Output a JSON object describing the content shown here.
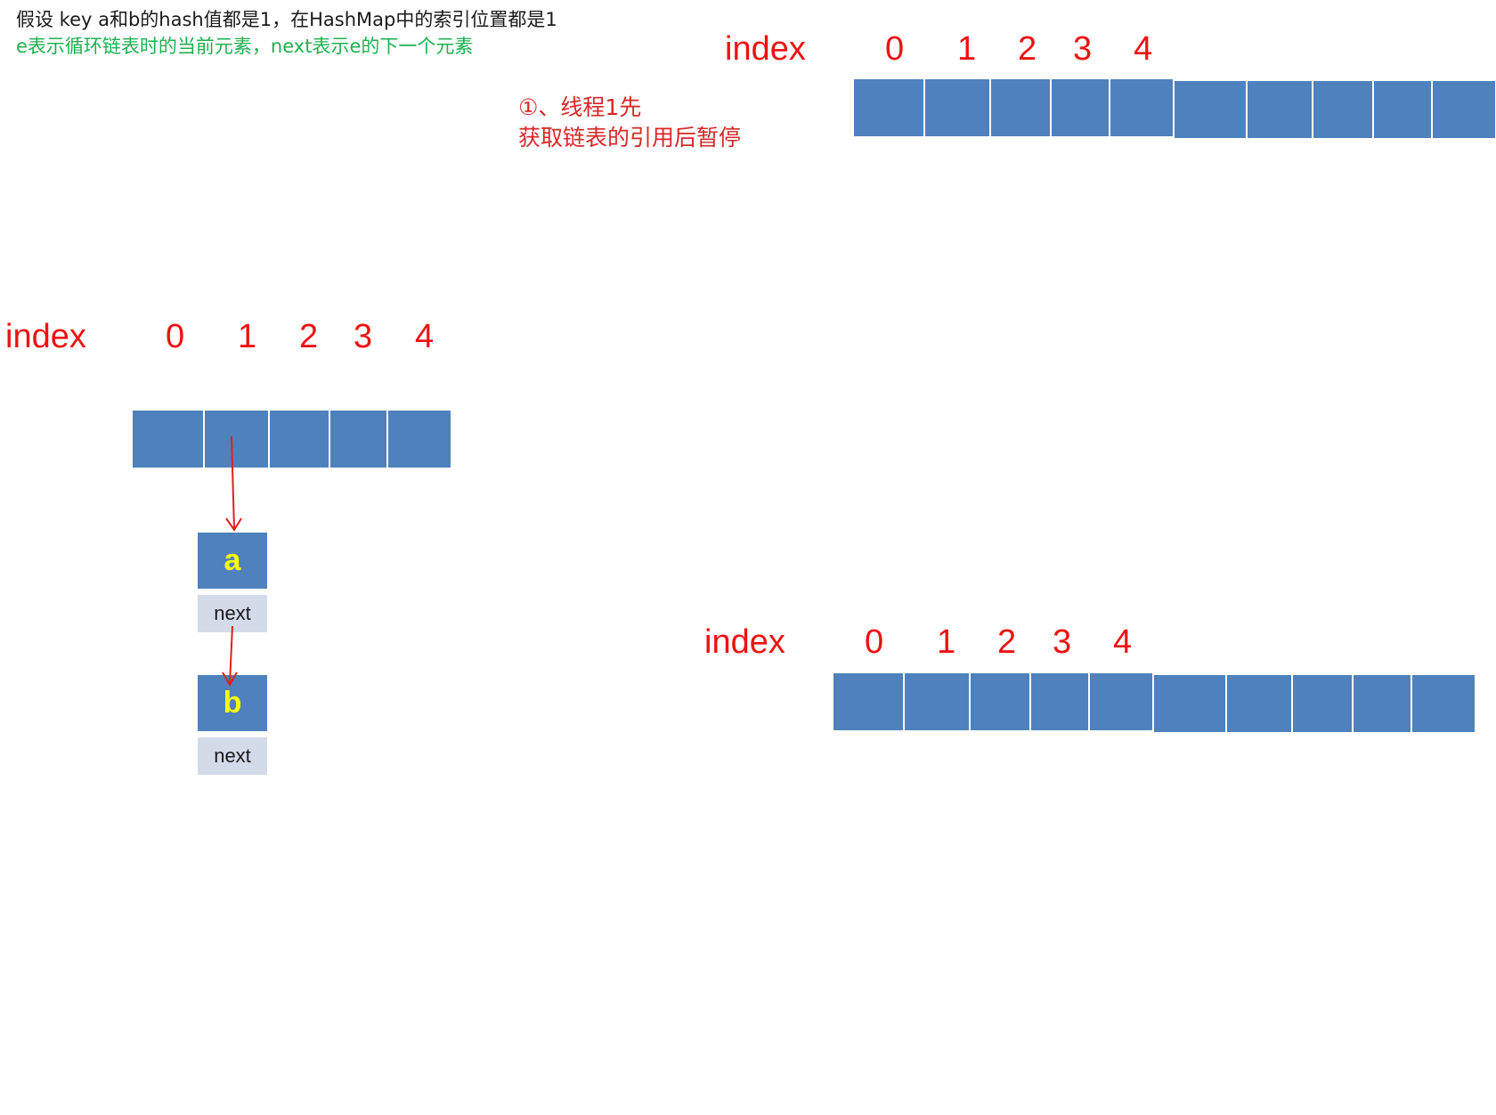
{
  "notes": {
    "line1": "假设 key a和b的hash值都是1，在HashMap中的索引位置都是1",
    "line2": "e表示循环链表时的当前元素，next表示e的下一个元素"
  },
  "step": {
    "line1": "①、线程1先",
    "line2": "获取链表的引用后暂停"
  },
  "index_label": "index",
  "index_numbers": [
    "0",
    "1",
    "2",
    "3",
    "4"
  ],
  "nodes": [
    {
      "key": "a",
      "next_label": "next"
    },
    {
      "key": "b",
      "next_label": "next"
    }
  ],
  "colors": {
    "cell": "#4f81bd",
    "node_next": "#d3dbe9",
    "index_text": "#ee1111",
    "arrow": "#e02020",
    "key_text": "#ffff00",
    "note_green": "#1fb050"
  }
}
